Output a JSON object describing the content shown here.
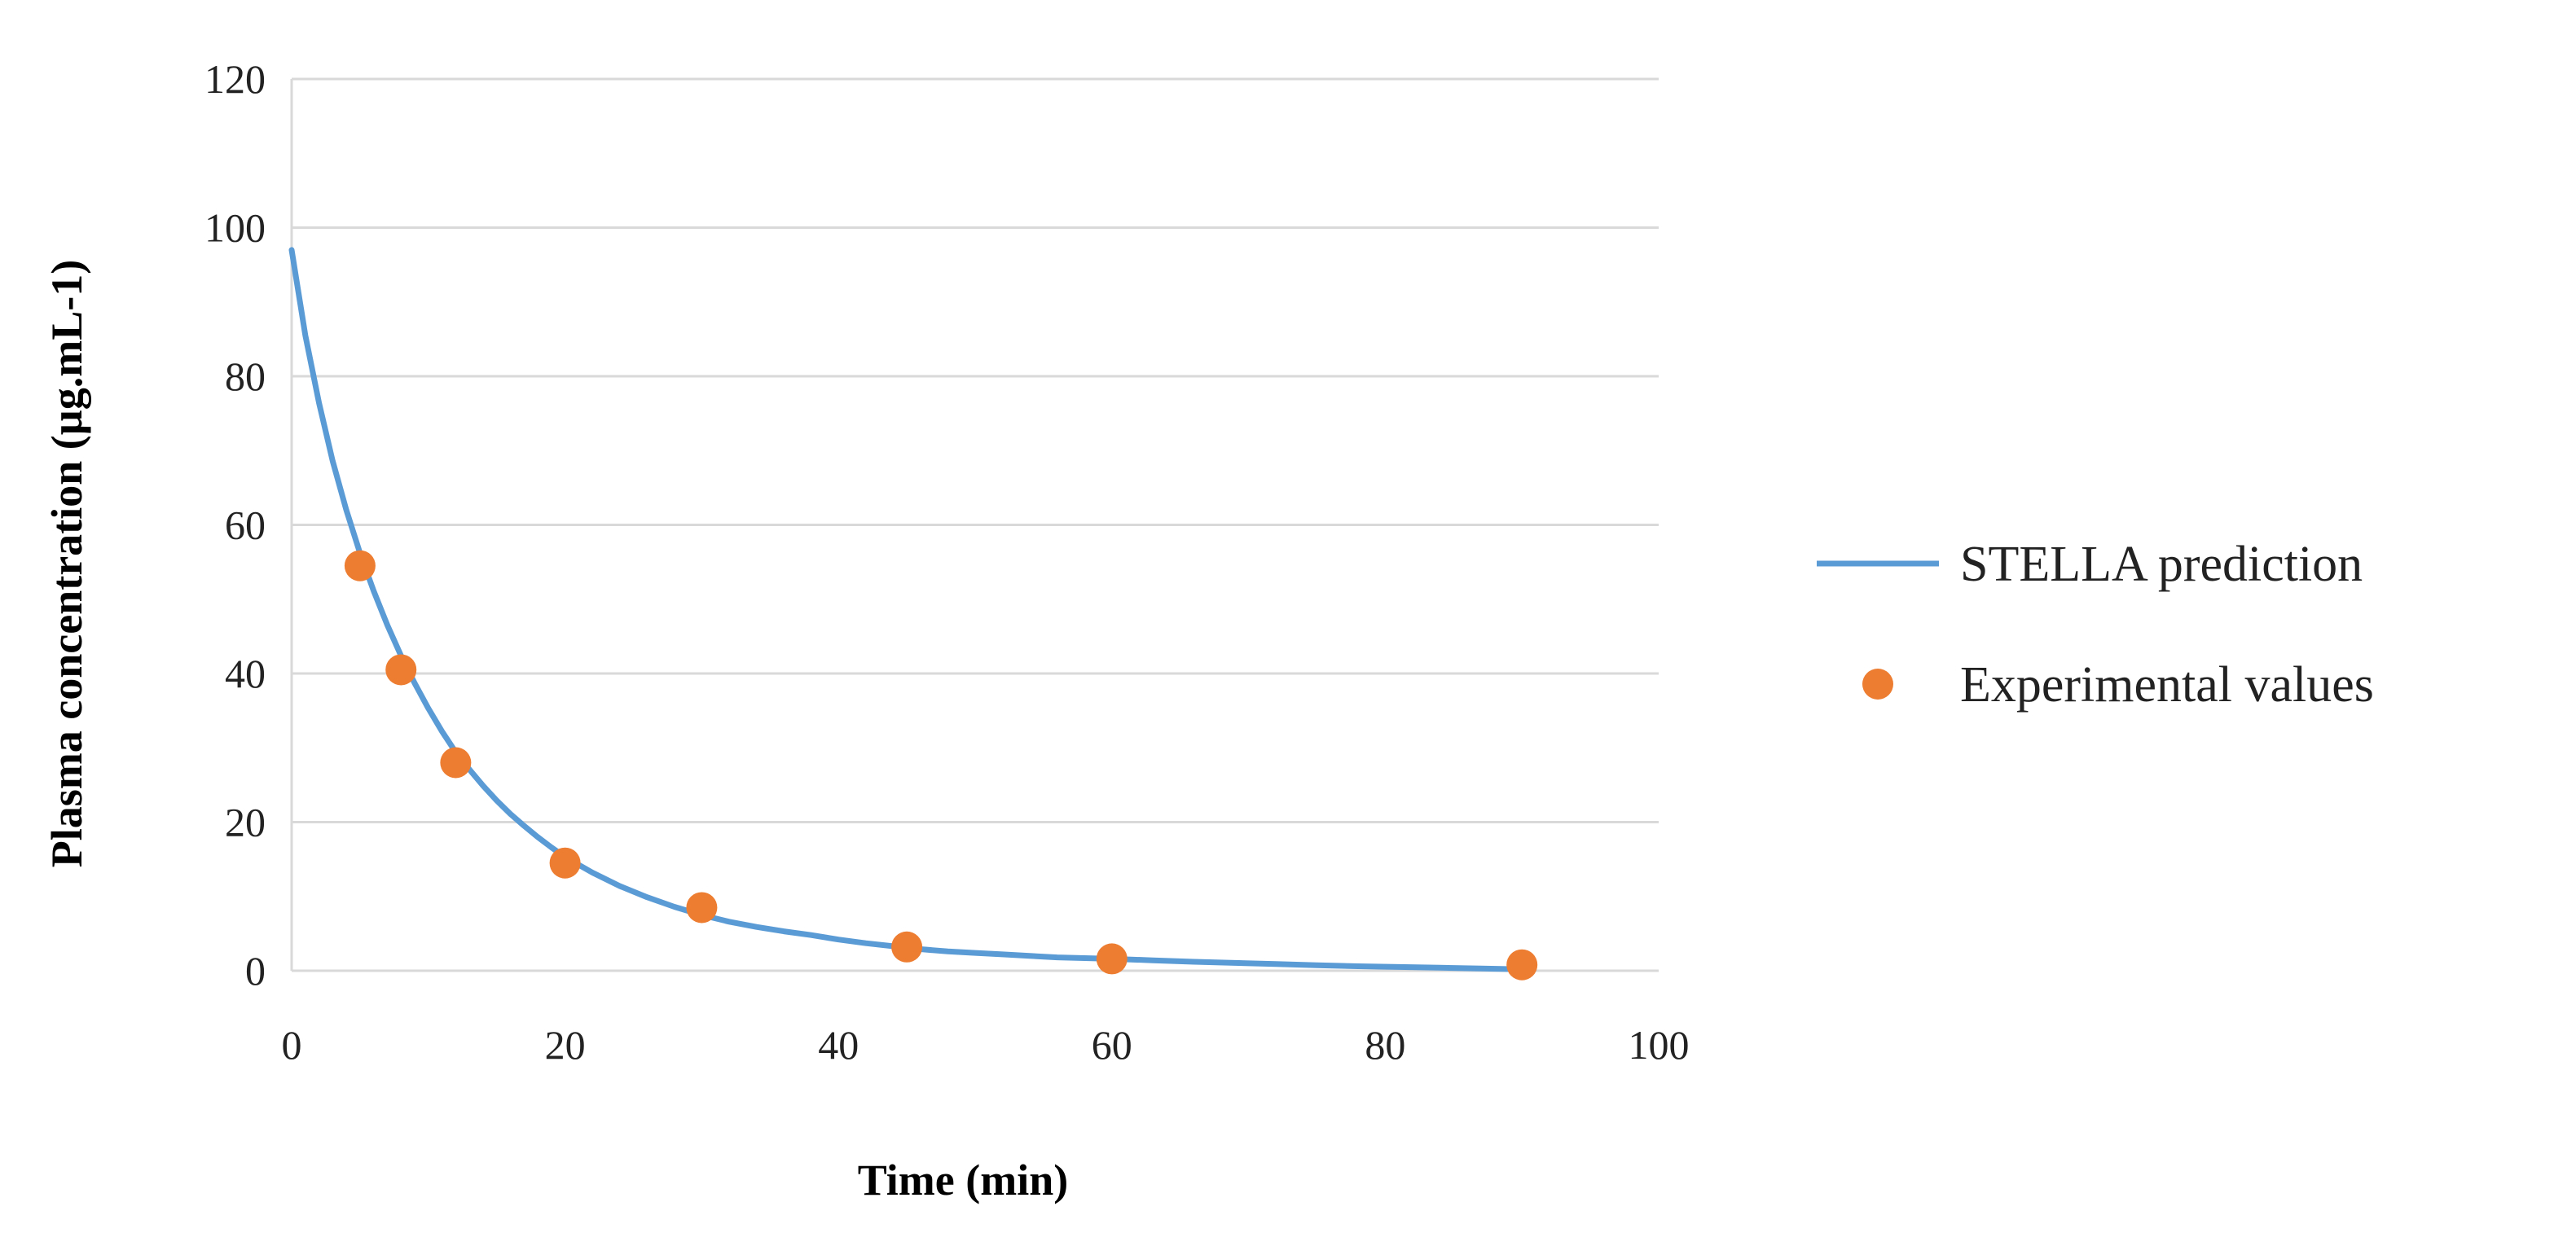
{
  "chart_data": {
    "type": "line",
    "title": "",
    "xlabel": "Time (min)",
    "ylabel": "Plasma concentration (µg.mL-1)",
    "xlim": [
      0,
      100
    ],
    "ylim": [
      0,
      120
    ],
    "x_ticks": [
      "0",
      "20",
      "40",
      "60",
      "80",
      "100"
    ],
    "y_ticks": [
      "0",
      "20",
      "40",
      "60",
      "80",
      "100",
      "120"
    ],
    "grid": "horizontal",
    "legend_position": "right",
    "series": [
      {
        "name": "STELLA prediction",
        "kind": "line",
        "color": "#5b9bd5",
        "x": [
          0,
          1,
          2,
          3,
          4,
          5,
          6,
          7,
          8,
          9,
          10,
          11,
          12,
          13,
          14,
          15,
          16,
          17,
          18,
          19,
          20,
          22,
          24,
          26,
          28,
          30,
          32,
          34,
          36,
          38,
          40,
          42,
          44,
          46,
          48,
          50,
          52,
          54,
          56,
          58,
          60,
          63,
          66,
          69,
          72,
          75,
          78,
          81,
          84,
          87,
          90
        ],
        "y": [
          97,
          85.5,
          76.4,
          68.6,
          62,
          56.2,
          51.1,
          46.5,
          42.4,
          38.7,
          35.3,
          32.2,
          29.4,
          27.1,
          24.9,
          22.9,
          21.1,
          19.5,
          18,
          16.6,
          15.3,
          13.2,
          11.4,
          9.9,
          8.6,
          7.5,
          6.6,
          5.9,
          5.3,
          4.8,
          4.2,
          3.7,
          3.3,
          2.9,
          2.6,
          2.4,
          2.2,
          2,
          1.8,
          1.7,
          1.6,
          1.4,
          1.2,
          1.05,
          0.9,
          0.75,
          0.6,
          0.5,
          0.4,
          0.3,
          0.2
        ]
      },
      {
        "name": "Experimental values",
        "kind": "scatter",
        "color": "#ed7d31",
        "x": [
          5,
          8,
          12,
          20,
          30,
          45,
          60,
          90
        ],
        "y": [
          54.5,
          40.5,
          28,
          14.5,
          8.5,
          3.2,
          1.6,
          0.8
        ]
      }
    ]
  }
}
